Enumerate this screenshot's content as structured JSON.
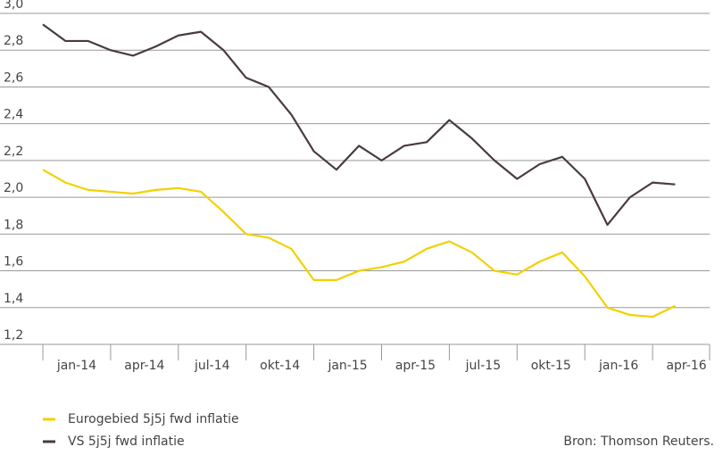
{
  "chart_data": {
    "type": "line",
    "categories": [
      "jan-14",
      null,
      null,
      "apr-14",
      null,
      null,
      "jul-14",
      null,
      null,
      "okt-14",
      null,
      null,
      "jan-15",
      null,
      null,
      "apr-15",
      null,
      null,
      "jul-15",
      null,
      null,
      "okt-15",
      null,
      null,
      "jan-16",
      null,
      null,
      "apr-16",
      null
    ],
    "series": [
      {
        "name": "Eurogebied 5j5j fwd inflatie",
        "color": "#f2d100",
        "values": [
          2.15,
          2.08,
          2.04,
          2.03,
          2.02,
          2.04,
          2.05,
          2.03,
          1.92,
          1.8,
          1.78,
          1.72,
          1.55,
          1.55,
          1.6,
          1.62,
          1.65,
          1.72,
          1.76,
          1.7,
          1.6,
          1.58,
          1.65,
          1.7,
          1.57,
          1.4,
          1.36,
          1.35,
          1.41
        ]
      },
      {
        "name": "VS 5j5j fwd inflatie",
        "color": "#4a3b3d",
        "values": [
          2.94,
          2.85,
          2.85,
          2.8,
          2.77,
          2.82,
          2.88,
          2.9,
          2.8,
          2.65,
          2.6,
          2.45,
          2.25,
          2.15,
          2.28,
          2.2,
          2.28,
          2.3,
          2.42,
          2.32,
          2.2,
          2.1,
          2.18,
          2.22,
          2.1,
          1.85,
          2.0,
          2.08,
          2.07
        ]
      }
    ],
    "ylim": [
      1.2,
      3.0
    ],
    "yticks": [
      {
        "value": 1.2,
        "label": "1,2"
      },
      {
        "value": 1.4,
        "label": "1,4"
      },
      {
        "value": 1.6,
        "label": "1,6"
      },
      {
        "value": 1.8,
        "label": "1,8"
      },
      {
        "value": 2.0,
        "label": "2,0"
      },
      {
        "value": 2.2,
        "label": "2,2"
      },
      {
        "value": 2.4,
        "label": "2,4"
      },
      {
        "value": 2.6,
        "label": "2,6"
      },
      {
        "value": 2.8,
        "label": "2,8"
      },
      {
        "value": 3.0,
        "label": "3,0"
      }
    ],
    "grid": true,
    "source": "Bron: Thomson Reuters."
  }
}
